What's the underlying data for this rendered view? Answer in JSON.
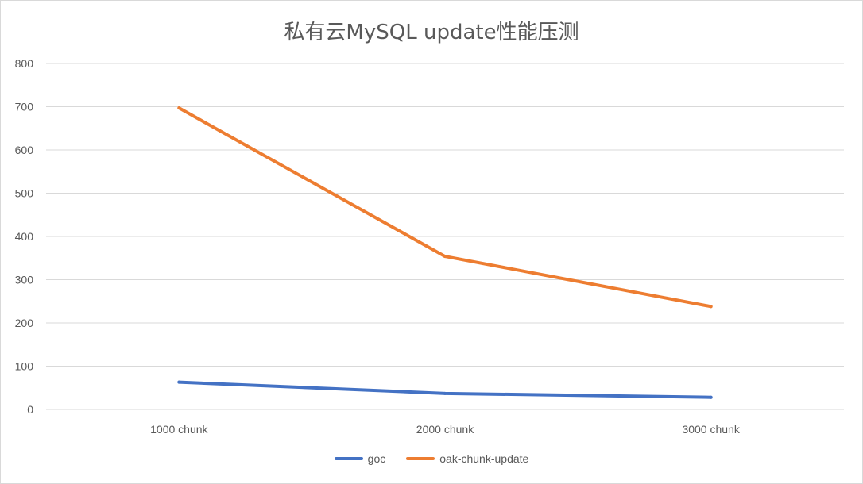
{
  "chart_data": {
    "type": "line",
    "title": "私有云MySQL update性能压测",
    "categories": [
      "1000 chunk",
      "2000 chunk",
      "3000 chunk"
    ],
    "ylim": [
      0,
      800
    ],
    "yticks": [
      "0",
      "100",
      "200",
      "300",
      "400",
      "500",
      "600",
      "700",
      "800"
    ],
    "grid": true,
    "legend_position": "bottom",
    "series": [
      {
        "name": "goc",
        "values": [
          63,
          37,
          28
        ],
        "color": "#4472c4"
      },
      {
        "name": "oak-chunk-update",
        "values": [
          697,
          354,
          238
        ],
        "color": "#ed7d31"
      }
    ]
  }
}
